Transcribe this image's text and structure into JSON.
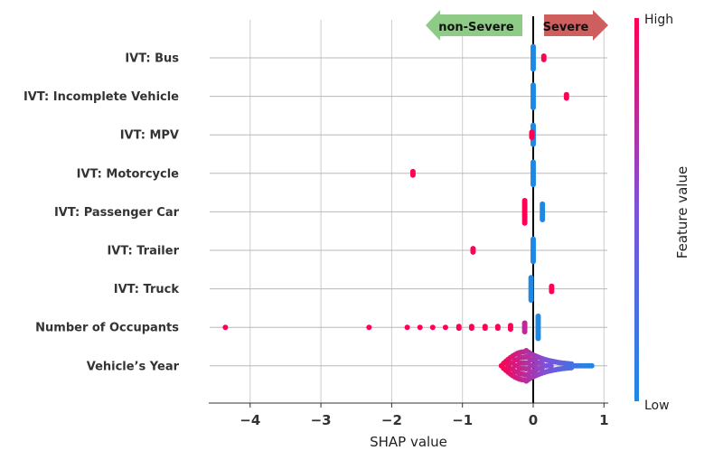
{
  "chart_data": {
    "type": "scatter",
    "subtype": "shap-beeswarm",
    "title": "",
    "xlabel": "SHAP value",
    "ylabel": "",
    "xlim": [
      -4.6,
      1.05
    ],
    "xticks": [
      -4,
      -3,
      -2,
      -1,
      0,
      1
    ],
    "xtick_labels": [
      "−4",
      "−3",
      "−2",
      "−1",
      "0",
      "1"
    ],
    "grid": true,
    "colorbar": {
      "label": "Feature value",
      "high": "High",
      "low": "Low",
      "colors": [
        "#1E88E5",
        "#7C52DB",
        "#FF0052"
      ]
    },
    "arrows": {
      "left": "non-Severe",
      "right": "Severe",
      "left_color": "#8DCB86",
      "right_color": "#CF5E5E"
    },
    "features": [
      {
        "name": "IVT: Bus",
        "points": [
          {
            "x": 0.0,
            "v": 0,
            "n": 14
          },
          {
            "x": 0.15,
            "v": 1,
            "n": 3
          }
        ]
      },
      {
        "name": "IVT: Incomplete Vehicle",
        "points": [
          {
            "x": 0.0,
            "v": 0,
            "n": 14
          },
          {
            "x": 0.47,
            "v": 1,
            "n": 3
          }
        ]
      },
      {
        "name": "IVT: MPV",
        "points": [
          {
            "x": 0.0,
            "v": 0,
            "n": 12
          },
          {
            "x": -0.02,
            "v": 1,
            "n": 4
          }
        ]
      },
      {
        "name": "IVT: Motorcycle",
        "points": [
          {
            "x": 0.0,
            "v": 0,
            "n": 14
          },
          {
            "x": -1.7,
            "v": 1,
            "n": 3
          }
        ]
      },
      {
        "name": "IVT: Passenger Car",
        "points": [
          {
            "x": -0.12,
            "v": 1,
            "n": 14
          },
          {
            "x": 0.13,
            "v": 0,
            "n": 10
          }
        ]
      },
      {
        "name": "IVT: Trailer",
        "points": [
          {
            "x": 0.0,
            "v": 0,
            "n": 14
          },
          {
            "x": -0.85,
            "v": 1,
            "n": 3
          }
        ]
      },
      {
        "name": "IVT: Truck",
        "points": [
          {
            "x": -0.03,
            "v": 0,
            "n": 14
          },
          {
            "x": 0.26,
            "v": 1,
            "n": 4
          }
        ]
      },
      {
        "name": "Number of Occupants",
        "points": [
          {
            "x": -4.35,
            "v": 1,
            "n": 1
          },
          {
            "x": -2.32,
            "v": 1,
            "n": 1
          },
          {
            "x": -1.78,
            "v": 1,
            "n": 1
          },
          {
            "x": -1.6,
            "v": 1,
            "n": 1
          },
          {
            "x": -1.42,
            "v": 1,
            "n": 1
          },
          {
            "x": -1.24,
            "v": 1,
            "n": 1
          },
          {
            "x": -1.05,
            "v": 1,
            "n": 2
          },
          {
            "x": -0.87,
            "v": 1,
            "n": 2
          },
          {
            "x": -0.68,
            "v": 1,
            "n": 2
          },
          {
            "x": -0.5,
            "v": 1,
            "n": 2
          },
          {
            "x": -0.32,
            "v": 1,
            "n": 3
          },
          {
            "x": -0.12,
            "v": 0.75,
            "n": 6
          },
          {
            "x": 0.07,
            "v": 0,
            "n": 14
          }
        ]
      },
      {
        "name": "Vehicle’s Year",
        "violin": {
          "x_min": -0.45,
          "x_max": 0.85,
          "x_peak": -0.12,
          "v_left": 1,
          "v_mid": 0.5,
          "v_right": 0
        }
      }
    ]
  }
}
